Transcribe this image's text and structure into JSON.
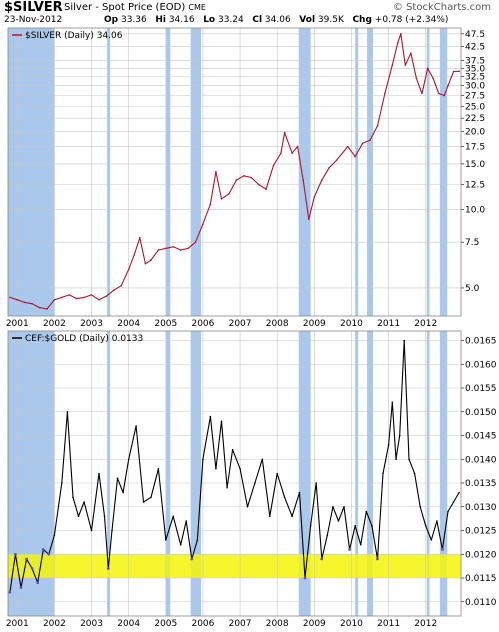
{
  "header": {
    "symbol": "$SILVER",
    "description": "Silver - Spot Price (EOD)",
    "exchange": "CME",
    "date": "23-Nov-2012",
    "open_label": "Op",
    "open": "33.36",
    "high_label": "Hi",
    "high": "34.16",
    "low_label": "Lo",
    "low": "33.24",
    "close_label": "Cl",
    "close": "34.06",
    "vol_label": "Vol",
    "vol": "39.5K",
    "chg_label": "Chg",
    "chg": "+0.78 (+2.34%)",
    "brand": "© StockCharts.com"
  },
  "colors": {
    "silver_line": "#b0142c",
    "ratio_line": "#000000",
    "ratio_low": "#6a4cc8",
    "shade": "#a9c8ec",
    "band": "#f5f50a"
  },
  "chart_data": [
    {
      "type": "line",
      "legend": "$SILVER (Daily) 34.06",
      "y_scale": "log",
      "ylim": [
        3.9,
        50
      ],
      "yticks": [
        5.0,
        7.5,
        10.0,
        12.5,
        15.0,
        17.5,
        20.0,
        22.5,
        25.0,
        27.5,
        30.0,
        32.5,
        35.0,
        37.5,
        42.5,
        47.5
      ],
      "xticks": [
        "2001",
        "2002",
        "2003",
        "2004",
        "2005",
        "2006",
        "2007",
        "2008",
        "2009",
        "2010",
        "2011",
        "2012"
      ],
      "grid": true,
      "series": [
        {
          "x": [
            2000.8,
            2001.0,
            2001.2,
            2001.4,
            2001.6,
            2001.8,
            2002.0,
            2002.2,
            2002.4,
            2002.6,
            2002.8,
            2003.0,
            2003.2,
            2003.4,
            2003.6,
            2003.8,
            2004.0,
            2004.15,
            2004.3,
            2004.45,
            2004.6,
            2004.8,
            2005.0,
            2005.2,
            2005.4,
            2005.6,
            2005.8,
            2006.0,
            2006.2,
            2006.35,
            2006.5,
            2006.7,
            2006.9,
            2007.1,
            2007.3,
            2007.5,
            2007.7,
            2007.9,
            2008.1,
            2008.2,
            2008.4,
            2008.55,
            2008.7,
            2008.85,
            2009.0,
            2009.2,
            2009.4,
            2009.6,
            2009.9,
            2010.1,
            2010.3,
            2010.5,
            2010.7,
            2010.9,
            2011.1,
            2011.25,
            2011.33,
            2011.45,
            2011.6,
            2011.75,
            2011.9,
            2012.05,
            2012.2,
            2012.35,
            2012.5,
            2012.6,
            2012.75,
            2012.9
          ],
          "values": [
            4.6,
            4.5,
            4.4,
            4.35,
            4.2,
            4.15,
            4.5,
            4.6,
            4.7,
            4.55,
            4.6,
            4.7,
            4.5,
            4.65,
            4.9,
            5.1,
            5.9,
            6.7,
            7.8,
            6.2,
            6.4,
            7.0,
            7.1,
            7.2,
            7.0,
            7.1,
            7.5,
            8.8,
            10.5,
            14.0,
            11.0,
            11.5,
            13.0,
            13.5,
            13.3,
            12.5,
            12.0,
            14.8,
            16.5,
            19.8,
            16.5,
            17.5,
            13.0,
            9.2,
            11.2,
            13.0,
            14.5,
            15.5,
            17.5,
            16.0,
            18.0,
            18.5,
            21.0,
            28.0,
            36.0,
            44.0,
            47.5,
            36.0,
            40.0,
            32.0,
            28.0,
            35.0,
            32.0,
            28.0,
            27.5,
            30.0,
            34.0,
            34.06
          ]
        }
      ]
    },
    {
      "type": "line",
      "legend": "CEF:$GOLD (Daily) 0.0133",
      "ylim": [
        0.0107,
        0.0167
      ],
      "yticks": [
        0.011,
        0.0115,
        0.012,
        0.0125,
        0.013,
        0.0135,
        0.014,
        0.0145,
        0.015,
        0.0155,
        0.016,
        0.0165
      ],
      "xticks": [
        "2001",
        "2002",
        "2003",
        "2004",
        "2005",
        "2006",
        "2007",
        "2008",
        "2009",
        "2010",
        "2011",
        "2012"
      ],
      "grid": true,
      "band": [
        0.0115,
        0.012
      ],
      "series": [
        {
          "x": [
            2000.8,
            2000.95,
            2001.1,
            2001.25,
            2001.4,
            2001.55,
            2001.7,
            2001.85,
            2002.0,
            2002.2,
            2002.35,
            2002.5,
            2002.65,
            2002.8,
            2003.0,
            2003.2,
            2003.35,
            2003.45,
            2003.55,
            2003.7,
            2003.85,
            2004.0,
            2004.2,
            2004.4,
            2004.6,
            2004.8,
            2005.0,
            2005.2,
            2005.4,
            2005.55,
            2005.7,
            2005.85,
            2006.0,
            2006.2,
            2006.35,
            2006.5,
            2006.65,
            2006.8,
            2007.0,
            2007.2,
            2007.4,
            2007.6,
            2007.8,
            2008.0,
            2008.2,
            2008.4,
            2008.6,
            2008.75,
            2008.9,
            2009.05,
            2009.2,
            2009.35,
            2009.5,
            2009.65,
            2009.8,
            2009.95,
            2010.1,
            2010.25,
            2010.4,
            2010.55,
            2010.7,
            2010.85,
            2011.0,
            2011.1,
            2011.2,
            2011.3,
            2011.42,
            2011.55,
            2011.7,
            2011.85,
            2012.0,
            2012.15,
            2012.3,
            2012.45,
            2012.6,
            2012.75,
            2012.9
          ],
          "values": [
            0.0112,
            0.012,
            0.0113,
            0.0119,
            0.0117,
            0.0114,
            0.0121,
            0.012,
            0.0124,
            0.0135,
            0.015,
            0.0132,
            0.0128,
            0.0131,
            0.0125,
            0.0137,
            0.0128,
            0.0117,
            0.0125,
            0.0136,
            0.0133,
            0.014,
            0.0147,
            0.0131,
            0.0132,
            0.0138,
            0.0123,
            0.0128,
            0.0122,
            0.0127,
            0.0119,
            0.0123,
            0.014,
            0.0149,
            0.0138,
            0.0148,
            0.0134,
            0.0142,
            0.0138,
            0.013,
            0.0135,
            0.014,
            0.0128,
            0.0137,
            0.0132,
            0.0128,
            0.0133,
            0.0115,
            0.0126,
            0.0135,
            0.0119,
            0.0124,
            0.013,
            0.0127,
            0.013,
            0.0121,
            0.0126,
            0.0122,
            0.0129,
            0.0126,
            0.0119,
            0.0137,
            0.0143,
            0.0152,
            0.014,
            0.0145,
            0.0165,
            0.014,
            0.0137,
            0.013,
            0.0126,
            0.0123,
            0.0127,
            0.0121,
            0.0129,
            0.0131,
            0.0133
          ]
        }
      ]
    }
  ],
  "highlight_periods": [
    [
      2000.75,
      2002.0
    ],
    [
      2003.42,
      2003.5
    ],
    [
      2005.0,
      2005.12
    ],
    [
      2005.67,
      2005.95
    ],
    [
      2008.58,
      2008.9
    ],
    [
      2010.1,
      2010.18
    ],
    [
      2010.42,
      2010.58
    ],
    [
      2012.03,
      2012.1
    ],
    [
      2012.38,
      2012.58
    ]
  ]
}
